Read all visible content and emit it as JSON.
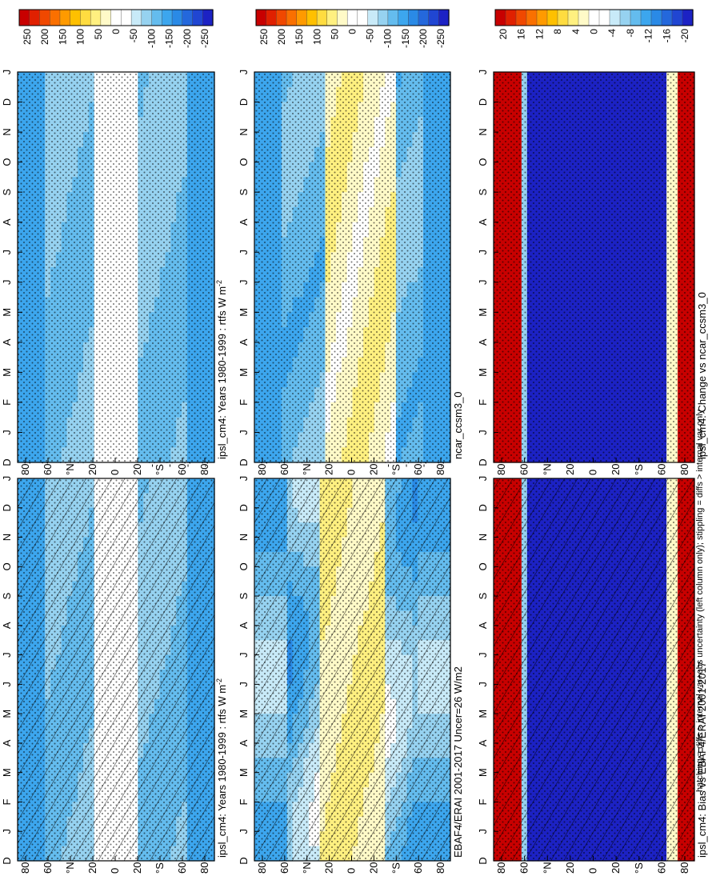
{
  "figure": {
    "footnote": "hatching = diffs > internal var+obs uncertainty (left column only); stippling = diffs > internal var only"
  },
  "months": [
    "D",
    "J",
    "F",
    "M",
    "A",
    "M",
    "J",
    "J",
    "A",
    "S",
    "O",
    "N",
    "D",
    "J"
  ],
  "lat_labels": [
    "80",
    "60",
    "°N",
    "20",
    "0",
    "20",
    "°S",
    "60",
    "80"
  ],
  "palettes": {
    "field": [
      "#c80000",
      "#e02000",
      "#f04800",
      "#fa7000",
      "#ff9a00",
      "#ffc000",
      "#ffdc40",
      "#fff080",
      "#fffac8",
      "#ffffff",
      "#ffffff",
      "#c8eaf8",
      "#96d2f0",
      "#64bcee",
      "#3ca6ee",
      "#2a8ae6",
      "#2468dc",
      "#2046d2",
      "#1c22c4"
    ],
    "diff": [
      "#c80000",
      "#e02000",
      "#f04800",
      "#fa7000",
      "#ff9a00",
      "#ffc000",
      "#ffdc40",
      "#fff080",
      "#fffac8",
      "#ffffff",
      "#ffffff",
      "#c8eaf8",
      "#96d2f0",
      "#64bcee",
      "#3ca6ee",
      "#2a8ae6",
      "#2468dc",
      "#2046d2",
      "#1c22c4"
    ]
  },
  "chart_data": [
    {
      "type": "heatmap",
      "title": "ipsl_cm4: Years 1980-1999 : rtfs W m",
      "title_sup": "-2",
      "colorbar_ticks": [
        "250",
        "200",
        "150",
        "100",
        "50",
        "0",
        "-50",
        "-100",
        "-150",
        "-200",
        "-250"
      ],
      "vmax": 250,
      "xlabel_months": true,
      "hatched": true
    },
    {
      "type": "heatmap",
      "title": "ipsl_cm4: Years 1980-1999 : rtfs W m",
      "title_sup": "-2",
      "colorbar_ticks": [
        "250",
        "200",
        "150",
        "100",
        "50",
        "0",
        "-50",
        "-100",
        "-150",
        "-200",
        "-250"
      ],
      "vmax": 250,
      "hatched": false
    },
    {
      "type": "heatmap",
      "title": "EBAF4/ERAI 2001-2017 Uncer=26 W/m2",
      "title_sup": "",
      "colorbar_ticks": [
        "250",
        "200",
        "150",
        "100",
        "50",
        "0",
        "-50",
        "-100",
        "-150",
        "-200",
        "-250"
      ],
      "vmax": 250,
      "hatched": true
    },
    {
      "type": "heatmap",
      "title": "ncar_ccsm3_0",
      "title_sup": "",
      "colorbar_ticks": [
        "250",
        "200",
        "150",
        "100",
        "50",
        "0",
        "-50",
        "-100",
        "-150",
        "-200",
        "-250"
      ],
      "vmax": 250,
      "hatched": false
    },
    {
      "type": "heatmap",
      "title": "ipsl_cm4: Bias vs EBAF4/ERAI 2001-2017",
      "title_sup": "",
      "colorbar_ticks": [
        "20",
        "16",
        "12",
        "8",
        "4",
        "0",
        "-4",
        "-8",
        "-12",
        "-16",
        "-20"
      ],
      "vmax": 20,
      "hatched": true
    },
    {
      "type": "heatmap",
      "title": "ipsl_cm4: Change vs ncar_ccsm3_0",
      "title_sup": "",
      "colorbar_ticks": [
        "20",
        "16",
        "12",
        "8",
        "4",
        "0",
        "-4",
        "-8",
        "-12",
        "-16",
        "-20"
      ],
      "vmax": 20,
      "hatched": false
    }
  ]
}
